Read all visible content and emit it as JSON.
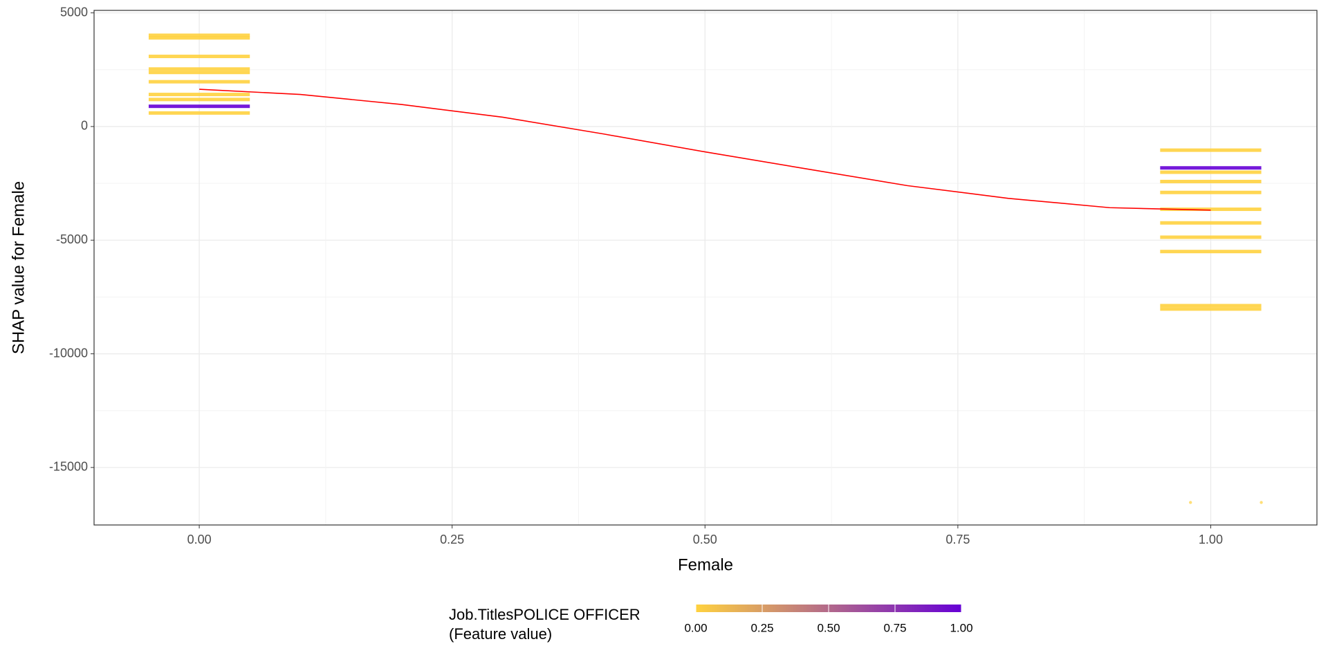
{
  "chart_data": {
    "type": "scatter",
    "x_label": "Female",
    "y_label": "SHAP value for Female",
    "xlim": [
      -0.104,
      1.105
    ],
    "ylim": [
      -17530,
      5110
    ],
    "xticks": [
      {
        "value": 0,
        "label": "0.00"
      },
      {
        "value": 0.25,
        "label": "0.25"
      },
      {
        "value": 0.5,
        "label": "0.50"
      },
      {
        "value": 0.75,
        "label": "0.75"
      },
      {
        "value": 1,
        "label": "1.00"
      }
    ],
    "yticks": [
      5000,
      0,
      -5000,
      -10000,
      -15000
    ],
    "grid": true,
    "jitter": 0.05,
    "bands": [
      {
        "x": 0,
        "y": 4015,
        "c": 0
      },
      {
        "x": 0,
        "y": 3900,
        "c": 0
      },
      {
        "x": 0,
        "y": 3085,
        "c": 0
      },
      {
        "x": 0,
        "y": 2530,
        "c": 0
      },
      {
        "x": 0,
        "y": 2380,
        "c": 0
      },
      {
        "x": 0,
        "y": 1970,
        "c": 0
      },
      {
        "x": 0,
        "y": 1410,
        "c": 0
      },
      {
        "x": 0,
        "y": 1190,
        "c": 0
      },
      {
        "x": 0,
        "y": 890,
        "c": 1
      },
      {
        "x": 0,
        "y": 595,
        "c": 0
      },
      {
        "x": 1,
        "y": -1040,
        "c": 0
      },
      {
        "x": 1,
        "y": -1820,
        "c": 1
      },
      {
        "x": 1,
        "y": -2010,
        "c": 0
      },
      {
        "x": 1,
        "y": -2420,
        "c": 0
      },
      {
        "x": 1,
        "y": -2900,
        "c": 0
      },
      {
        "x": 1,
        "y": -3640,
        "c": 0
      },
      {
        "x": 1,
        "y": -4240,
        "c": 0
      },
      {
        "x": 1,
        "y": -4870,
        "c": 0
      },
      {
        "x": 1,
        "y": -5500,
        "c": 0
      },
      {
        "x": 1,
        "y": -7880,
        "c": 0
      },
      {
        "x": 1,
        "y": -8030,
        "c": 0
      }
    ],
    "points": [
      {
        "x": 0.98,
        "y": -16540,
        "c": 0
      },
      {
        "x": 1.05,
        "y": -16540,
        "c": 0
      }
    ],
    "smooth": {
      "color": "#ff0000",
      "x": [
        0,
        0.1,
        0.2,
        0.3,
        0.4,
        0.5,
        0.6,
        0.7,
        0.8,
        0.9,
        1.0
      ],
      "y": [
        1640,
        1410,
        970,
        410,
        -330,
        -1115,
        -1860,
        -2600,
        -3160,
        -3570,
        -3680
      ]
    },
    "color_low": "#ffd23f",
    "color_high": "#6600d6",
    "legend_title": [
      "Job.TitlesPOLICE OFFICER",
      "(Feature value)"
    ],
    "legend_ticks": [
      {
        "value": 0,
        "label": "0.00"
      },
      {
        "value": 0.25,
        "label": "0.25"
      },
      {
        "value": 0.5,
        "label": "0.50"
      },
      {
        "value": 0.75,
        "label": "0.75"
      },
      {
        "value": 1,
        "label": "1.00"
      }
    ]
  }
}
